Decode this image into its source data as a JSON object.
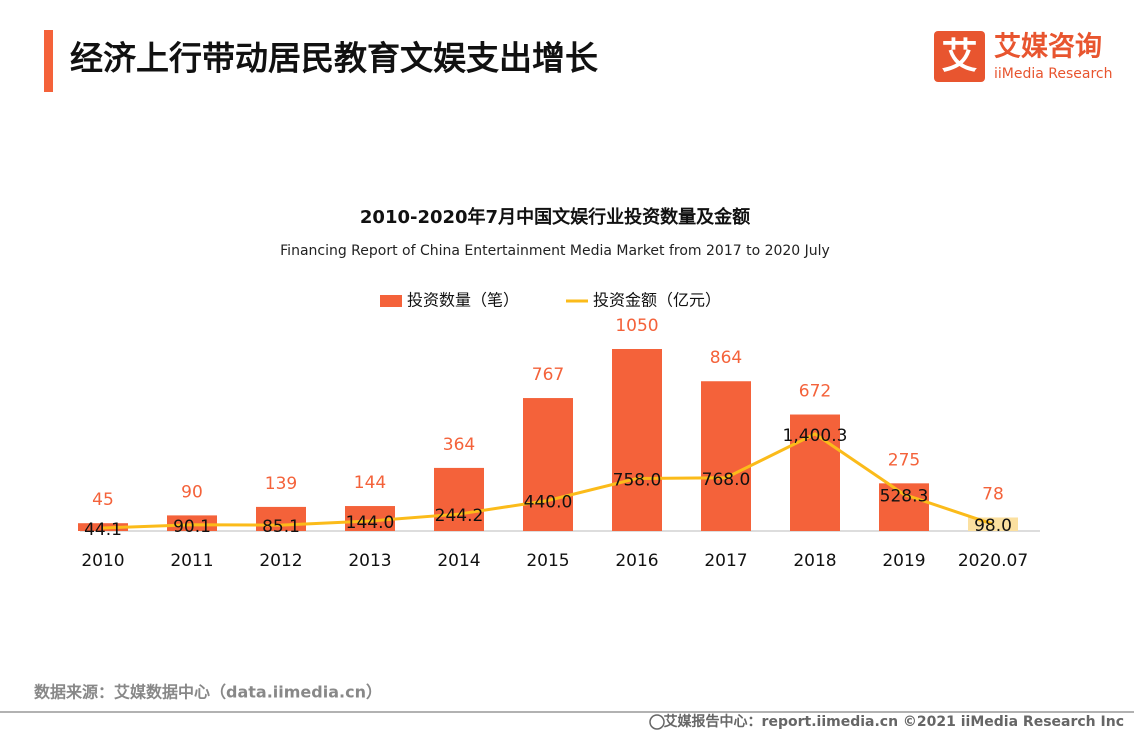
{
  "header": {
    "title": "经济上行带动居民教育文娱支出增长",
    "logo": {
      "mark": "艾",
      "name": "艾媒咨询",
      "sub": "iiMedia Research"
    }
  },
  "chart_data": {
    "type": "combo",
    "title": "2010-2020年7月中国文娱行业投资数量及金额",
    "subtitle": "Financing Report  of China Entertainment Media Market from 2017 to 2020 July",
    "categories": [
      "2010",
      "2011",
      "2012",
      "2013",
      "2014",
      "2015",
      "2016",
      "2017",
      "2018",
      "2019",
      "2020.07"
    ],
    "series": [
      {
        "name": "投资数量（笔）",
        "type": "bar",
        "color": "#f4623a",
        "colors": [
          "#f4623a",
          "#f4623a",
          "#f4623a",
          "#f4623a",
          "#f4623a",
          "#f4623a",
          "#f4623a",
          "#f4623a",
          "#f4623a",
          "#f4623a",
          "#fbe0a0"
        ],
        "values": [
          45,
          90,
          139,
          144,
          364,
          767,
          1050,
          864,
          672,
          275,
          78
        ]
      },
      {
        "name": "投资金额（亿元）",
        "type": "line",
        "axis": "y2",
        "color": "#fbbb1a",
        "values": [
          44.1,
          90.1,
          85.1,
          144.0,
          244.2,
          440.0,
          758.0,
          768.0,
          1400.3,
          528.3,
          98.0
        ],
        "value_labels": [
          "44.1",
          "90.1",
          "85.1",
          "144.0",
          "244.2",
          "440.0",
          "758.0",
          "768.0",
          "1,400.3",
          "528.3",
          "98.0"
        ]
      }
    ],
    "ylim": [
      0,
      1200
    ],
    "y2lim": [
      0,
      3000
    ],
    "grid": false
  },
  "source": "数据来源：艾媒数据中心（data.iimedia.cn）",
  "footer": "艾媒报告中心：report.iimedia.cn   ©2021  iiMedia Research  Inc"
}
